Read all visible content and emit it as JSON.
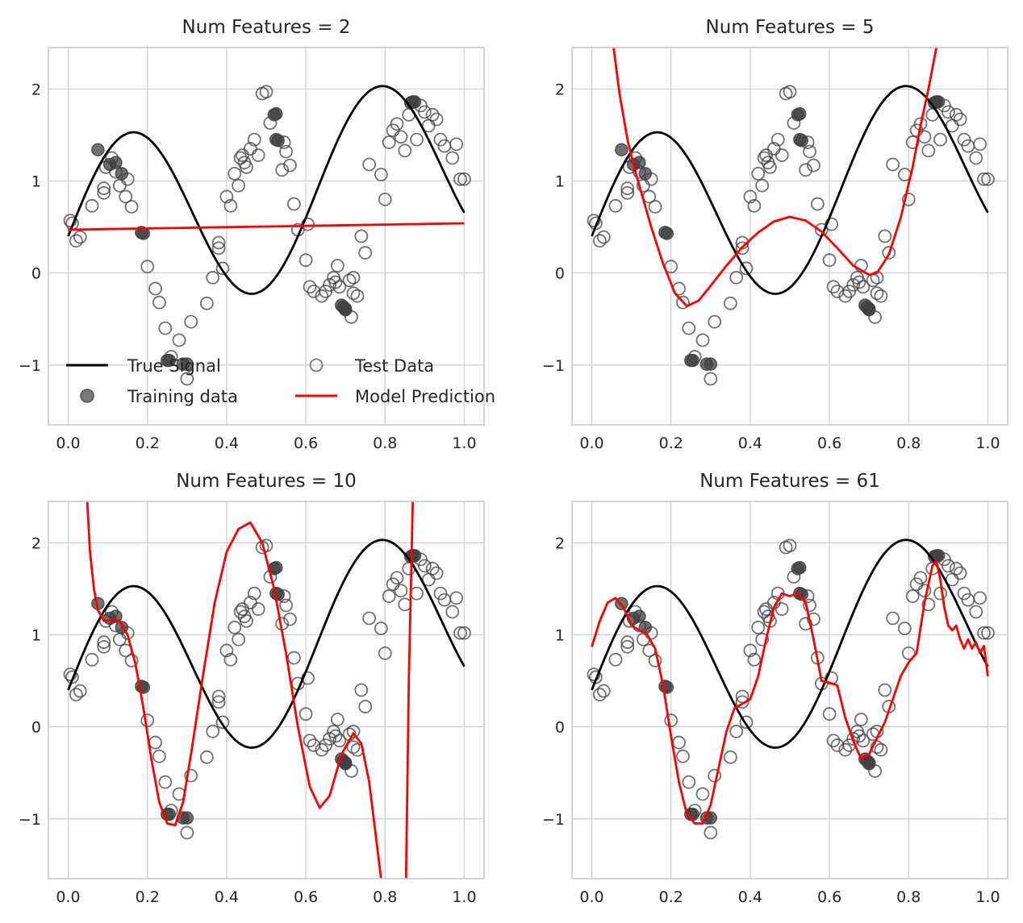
{
  "figure": {
    "legend": {
      "location": "lower-left of first panel",
      "items": [
        {
          "key": "true",
          "label": "True Signal"
        },
        {
          "key": "test",
          "label": "Test Data"
        },
        {
          "key": "train",
          "label": "Training data"
        },
        {
          "key": "model",
          "label": "Model Prediction"
        }
      ]
    },
    "colors": {
      "true_signal": "#000000",
      "model": "#ff0000",
      "points": "#404040",
      "grid": "#d0d0d0"
    }
  },
  "chart_data": [
    {
      "type": "line",
      "title": "Num Features = 2",
      "xlim": [
        -0.05,
        1.05
      ],
      "ylim": [
        -1.65,
        2.45
      ],
      "xticks": [
        "0.0",
        "0.2",
        "0.4",
        "0.6",
        "0.8",
        "1.0"
      ],
      "xtick_values": [
        0,
        0.2,
        0.4,
        0.6,
        0.8,
        1.0
      ],
      "yticks": [
        "−1",
        "0",
        "1",
        "2"
      ],
      "ytick_values": [
        -1,
        0,
        1,
        2
      ],
      "model_prediction": {
        "x": [
          0,
          0.1,
          0.2,
          0.3,
          0.4,
          0.5,
          0.6,
          0.7,
          0.8,
          0.9,
          1.0
        ],
        "y": [
          0.47,
          0.477,
          0.484,
          0.491,
          0.498,
          0.505,
          0.512,
          0.519,
          0.526,
          0.533,
          0.54
        ]
      }
    },
    {
      "type": "line",
      "title": "Num Features = 5",
      "xlim": [
        -0.05,
        1.05
      ],
      "ylim": [
        -1.65,
        2.45
      ],
      "xticks": [
        "0.0",
        "0.2",
        "0.4",
        "0.6",
        "0.8",
        "1.0"
      ],
      "xtick_values": [
        0,
        0.2,
        0.4,
        0.6,
        0.8,
        1.0
      ],
      "yticks": [
        "−1",
        "0",
        "1",
        "2"
      ],
      "ytick_values": [
        -1,
        0,
        1,
        2
      ],
      "model_prediction": {
        "x": [
          0.055,
          0.07,
          0.09,
          0.11,
          0.13,
          0.15,
          0.18,
          0.21,
          0.24,
          0.27,
          0.3,
          0.34,
          0.38,
          0.42,
          0.46,
          0.5,
          0.54,
          0.58,
          0.62,
          0.66,
          0.7,
          0.72,
          0.75,
          0.78,
          0.81,
          0.83,
          0.85,
          0.87
        ],
        "y": [
          2.45,
          1.95,
          1.45,
          1.1,
          0.8,
          0.5,
          0.1,
          -0.22,
          -0.36,
          -0.3,
          -0.14,
          0.08,
          0.28,
          0.44,
          0.56,
          0.61,
          0.57,
          0.45,
          0.27,
          0.08,
          -0.02,
          0.0,
          0.2,
          0.6,
          1.15,
          1.6,
          2.0,
          2.45
        ]
      }
    },
    {
      "type": "line",
      "title": "Num Features = 10",
      "xlim": [
        -0.05,
        1.05
      ],
      "ylim": [
        -1.65,
        2.45
      ],
      "xticks": [
        "0.0",
        "0.2",
        "0.4",
        "0.6",
        "0.8",
        "1.0"
      ],
      "xtick_values": [
        0,
        0.2,
        0.4,
        0.6,
        0.8,
        1.0
      ],
      "yticks": [
        "−1",
        "0",
        "1",
        "2"
      ],
      "ytick_values": [
        -1,
        0,
        1,
        2
      ],
      "model_prediction": {
        "segments": [
          {
            "x": [
              0.048,
              0.055,
              0.065,
              0.075,
              0.09,
              0.11,
              0.13,
              0.15,
              0.17,
              0.19,
              0.21,
              0.23,
              0.25,
              0.27,
              0.29,
              0.31,
              0.34,
              0.37,
              0.4,
              0.43,
              0.46,
              0.49,
              0.52,
              0.55,
              0.58,
              0.61,
              0.635,
              0.66,
              0.69,
              0.72,
              0.74,
              0.76,
              0.78,
              0.79
            ],
            "y": [
              2.45,
              1.9,
              1.5,
              1.27,
              1.15,
              1.16,
              1.15,
              1.0,
              0.68,
              0.2,
              -0.35,
              -0.82,
              -1.05,
              -1.07,
              -0.82,
              -0.3,
              0.55,
              1.35,
              1.9,
              2.15,
              2.22,
              2.0,
              1.5,
              0.8,
              0.0,
              -0.65,
              -0.88,
              -0.75,
              -0.3,
              -0.07,
              -0.18,
              -0.6,
              -1.3,
              -1.65
            ]
          },
          {
            "x": [
              0.853,
              0.86,
              0.87
            ],
            "y": [
              -1.65,
              0.5,
              2.45
            ]
          }
        ]
      }
    },
    {
      "type": "line",
      "title": "Num Features = 61",
      "xlim": [
        -0.05,
        1.05
      ],
      "ylim": [
        -1.65,
        2.45
      ],
      "xticks": [
        "0.0",
        "0.2",
        "0.4",
        "0.6",
        "0.8",
        "1.0"
      ],
      "xtick_values": [
        0,
        0.2,
        0.4,
        0.6,
        0.8,
        1.0
      ],
      "yticks": [
        "−1",
        "0",
        "1",
        "2"
      ],
      "ytick_values": [
        -1,
        0,
        1,
        2
      ],
      "model_prediction": {
        "x": [
          0,
          0.02,
          0.04,
          0.06,
          0.08,
          0.1,
          0.12,
          0.14,
          0.16,
          0.18,
          0.2,
          0.22,
          0.24,
          0.26,
          0.28,
          0.3,
          0.32,
          0.34,
          0.36,
          0.38,
          0.4,
          0.42,
          0.44,
          0.46,
          0.48,
          0.5,
          0.52,
          0.54,
          0.56,
          0.58,
          0.6,
          0.62,
          0.64,
          0.66,
          0.68,
          0.7,
          0.72,
          0.74,
          0.76,
          0.78,
          0.8,
          0.82,
          0.84,
          0.86,
          0.87,
          0.88,
          0.89,
          0.9,
          0.91,
          0.92,
          0.93,
          0.94,
          0.95,
          0.96,
          0.97,
          0.98,
          0.99,
          1.0
        ],
        "y": [
          0.87,
          1.15,
          1.35,
          1.4,
          1.3,
          1.1,
          1.05,
          1.0,
          0.85,
          0.45,
          -0.1,
          -0.6,
          -0.95,
          -1.05,
          -1.05,
          -0.85,
          -0.45,
          -0.05,
          0.2,
          0.25,
          0.3,
          0.55,
          0.95,
          1.3,
          1.45,
          1.42,
          1.45,
          1.35,
          0.95,
          0.5,
          0.48,
          0.45,
          0.1,
          -0.15,
          -0.35,
          -0.3,
          -0.12,
          0.05,
          0.3,
          0.55,
          0.7,
          0.8,
          1.35,
          1.75,
          1.8,
          1.6,
          1.3,
          1.1,
          1.05,
          1.1,
          0.95,
          0.85,
          0.95,
          0.85,
          0.92,
          0.8,
          0.88,
          0.55
        ]
      }
    }
  ],
  "true_signal": {
    "formula": "sin(10x) + 0.8x + 0.4",
    "x_range": [
      0,
      1
    ]
  },
  "training_data": {
    "x": [
      0.075,
      0.105,
      0.12,
      0.135,
      0.185,
      0.19,
      0.25,
      0.255,
      0.29,
      0.3,
      0.52,
      0.525,
      0.525,
      0.53,
      0.69,
      0.7,
      0.695,
      0.7,
      0.865,
      0.87,
      0.875
    ],
    "y": [
      1.34,
      1.18,
      1.2,
      1.08,
      0.44,
      0.43,
      -0.95,
      -0.95,
      -0.99,
      -0.99,
      1.72,
      1.73,
      1.45,
      1.44,
      -0.35,
      -0.39,
      -0.37,
      -0.4,
      1.85,
      1.86,
      1.86
    ]
  },
  "test_data": {
    "x": [
      0.005,
      0.01,
      0.02,
      0.03,
      0.06,
      0.09,
      0.09,
      0.095,
      0.11,
      0.12,
      0.13,
      0.145,
      0.15,
      0.16,
      0.2,
      0.22,
      0.23,
      0.245,
      0.26,
      0.28,
      0.3,
      0.31,
      0.35,
      0.365,
      0.38,
      0.38,
      0.39,
      0.4,
      0.41,
      0.42,
      0.43,
      0.435,
      0.44,
      0.445,
      0.45,
      0.46,
      0.47,
      0.48,
      0.49,
      0.5,
      0.51,
      0.54,
      0.545,
      0.55,
      0.56,
      0.57,
      0.58,
      0.6,
      0.605,
      0.61,
      0.62,
      0.64,
      0.65,
      0.66,
      0.67,
      0.675,
      0.68,
      0.685,
      0.71,
      0.715,
      0.72,
      0.72,
      0.73,
      0.74,
      0.75,
      0.76,
      0.79,
      0.8,
      0.81,
      0.82,
      0.83,
      0.84,
      0.85,
      0.86,
      0.88,
      0.89,
      0.9,
      0.91,
      0.92,
      0.93,
      0.94,
      0.95,
      0.97,
      0.98,
      0.99,
      1.0
    ],
    "y": [
      0.57,
      0.54,
      0.35,
      0.39,
      0.73,
      0.92,
      0.87,
      1.15,
      1.25,
      1.1,
      0.95,
      0.83,
      1.02,
      0.72,
      0.07,
      -0.17,
      -0.32,
      -0.6,
      -0.91,
      -0.73,
      -1.15,
      -0.53,
      -0.33,
      -0.05,
      0.33,
      0.27,
      0.05,
      0.83,
      0.73,
      1.08,
      0.95,
      1.25,
      1.28,
      1.2,
      1.15,
      1.35,
      1.45,
      1.28,
      1.95,
      1.97,
      1.63,
      1.12,
      1.42,
      1.32,
      1.17,
      0.75,
      0.47,
      0.14,
      0.53,
      -0.15,
      -0.2,
      -0.25,
      -0.2,
      -0.13,
      -0.05,
      -0.1,
      0.08,
      -0.15,
      -0.08,
      -0.48,
      -0.22,
      -0.05,
      -0.25,
      0.4,
      0.22,
      1.18,
      1.07,
      0.8,
      1.42,
      1.55,
      1.62,
      1.48,
      1.33,
      1.72,
      1.45,
      1.82,
      1.75,
      1.6,
      1.72,
      1.67,
      1.45,
      1.38,
      1.25,
      1.4,
      1.02,
      1.02
    ]
  }
}
